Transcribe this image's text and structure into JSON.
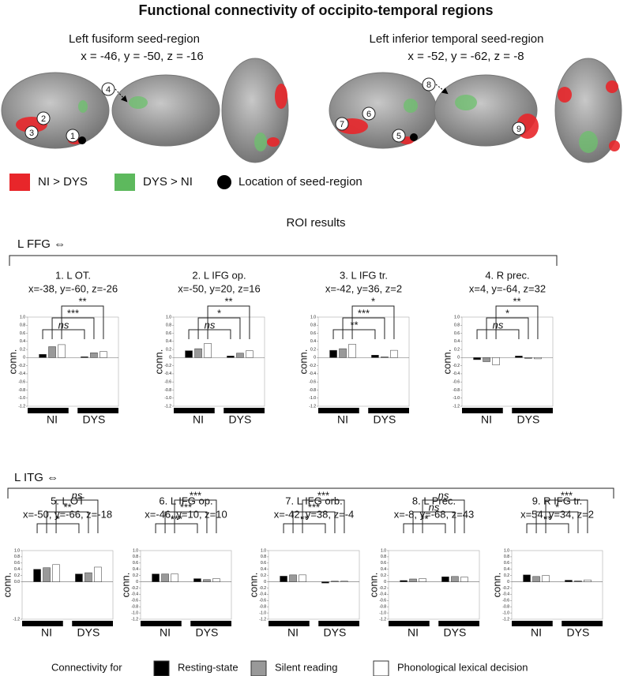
{
  "title": "Functional connectivity of occipito-temporal regions",
  "seeds": [
    {
      "name": "Left fusiform seed-region",
      "coords": "x = -46, y = -50, z = -16"
    },
    {
      "name": "Left inferior temporal seed-region",
      "coords": "x = -52, y = -62, z = -8"
    }
  ],
  "markers": [
    "1",
    "2",
    "3",
    "4",
    "5",
    "6",
    "7",
    "8",
    "9"
  ],
  "map_legend": [
    "NI > DYS",
    "DYS > NI",
    "Location of seed-region"
  ],
  "roi_title": "ROI results",
  "groups": [
    "L FFG ⇔",
    "L ITG ⇔"
  ],
  "legend_title": "Connectivity for",
  "chart_data": [
    {
      "type": "bar",
      "title": "1. L OT.",
      "subtitle": "x=-38, y=-60, z=-26",
      "ylabel": "conn.",
      "categories": [
        "NI",
        "DYS"
      ],
      "series": [
        {
          "name": "Resting-state",
          "color": "#000000",
          "values": [
            0.08,
            0.02
          ]
        },
        {
          "name": "Silent reading",
          "color": "#999999",
          "values": [
            0.27,
            0.12
          ]
        },
        {
          "name": "Phonological lexical decision",
          "color": "#ffffff",
          "values": [
            0.32,
            0.15
          ]
        }
      ],
      "significance": [
        "ns",
        "***",
        "**"
      ],
      "ylim": [
        -1.2,
        1.0
      ],
      "yticks": [
        {
          "value": 1,
          "label": "1.0"
        },
        0.8,
        0.6,
        0.4,
        0.2,
        0,
        -0.2,
        -0.4,
        -0.6,
        -0.8,
        {
          "value": -1,
          "label": "-1.0"
        },
        -1.2
      ]
    },
    {
      "type": "bar",
      "title": "2. L IFG op.",
      "subtitle": "x=-50, y=20, z=16",
      "ylabel": "conn.",
      "categories": [
        "NI",
        "DYS"
      ],
      "series": [
        {
          "name": "Resting-state",
          "color": "#000000",
          "values": [
            0.17,
            0.04
          ]
        },
        {
          "name": "Silent reading",
          "color": "#999999",
          "values": [
            0.22,
            0.11
          ]
        },
        {
          "name": "Phonological lexical decision",
          "color": "#ffffff",
          "values": [
            0.35,
            0.17
          ]
        }
      ],
      "significance": [
        "ns",
        "*",
        "**"
      ],
      "ylim": [
        -1.2,
        1.0
      ],
      "yticks": [
        {
          "value": 1,
          "label": "1.0"
        },
        0.8,
        0.6,
        0.4,
        0.2,
        0,
        -0.2,
        -0.4,
        -0.6,
        -0.8,
        {
          "value": -1,
          "label": "-1.0"
        },
        -1.2
      ]
    },
    {
      "type": "bar",
      "title": "3. L IFG tr.",
      "subtitle": "x=-42, y=36, z=2",
      "ylabel": "conn.",
      "categories": [
        "NI",
        "DYS"
      ],
      "series": [
        {
          "name": "Resting-state",
          "color": "#000000",
          "values": [
            0.18,
            0.06
          ]
        },
        {
          "name": "Silent reading",
          "color": "#999999",
          "values": [
            0.22,
            0.02
          ]
        },
        {
          "name": "Phonological lexical decision",
          "color": "#ffffff",
          "values": [
            0.33,
            0.18
          ]
        }
      ],
      "significance": [
        "**",
        "***",
        "*"
      ],
      "ylim": [
        -1.2,
        1.0
      ],
      "yticks": [
        {
          "value": 1,
          "label": "1.0"
        },
        0.8,
        0.6,
        0.4,
        0.2,
        0,
        -0.2,
        -0.4,
        -0.6,
        -0.8,
        {
          "value": -1,
          "label": "-1.0"
        },
        -1.2
      ]
    },
    {
      "type": "bar",
      "title": "4. R prec.",
      "subtitle": "x=4, y=-64, z=32",
      "ylabel": "conn.",
      "categories": [
        "NI",
        "DYS"
      ],
      "series": [
        {
          "name": "Resting-state",
          "color": "#000000",
          "values": [
            -0.05,
            0.04
          ]
        },
        {
          "name": "Silent reading",
          "color": "#999999",
          "values": [
            -0.1,
            -0.02
          ]
        },
        {
          "name": "Phonological lexical decision",
          "color": "#ffffff",
          "values": [
            -0.18,
            -0.03
          ]
        }
      ],
      "significance": [
        "ns",
        "*",
        "**"
      ],
      "ylim": [
        -1.2,
        1.0
      ],
      "yticks": [
        {
          "value": 1,
          "label": "1.0"
        },
        0.8,
        0.6,
        0.4,
        0.2,
        0,
        -0.2,
        -0.4,
        -0.6,
        -0.8,
        {
          "value": -1,
          "label": "-1.0"
        },
        -1.2
      ]
    },
    {
      "type": "bar",
      "title": "5. L OT",
      "subtitle": "x=-50, y=-66, z=-18",
      "ylabel": "conn.",
      "categories": [
        "NI",
        "DYS"
      ],
      "series": [
        {
          "name": "Resting-state",
          "color": "#000000",
          "values": [
            0.4,
            0.25
          ]
        },
        {
          "name": "Silent reading",
          "color": "#999999",
          "values": [
            0.45,
            0.29
          ]
        },
        {
          "name": "Phonological lexical decision",
          "color": "#ffffff",
          "values": [
            0.55,
            0.47
          ]
        }
      ],
      "significance": [
        "*",
        "**",
        "ns"
      ],
      "ylim": [
        -1.2,
        1.0
      ],
      "yticks": [
        {
          "value": 1,
          "label": "1.0"
        },
        0.8,
        0.6,
        0.4,
        0.2,
        {
          "value": 0,
          "label": "0.0"
        },
        {
          "value": -1.2,
          "label": "-1.2"
        }
      ]
    },
    {
      "type": "bar",
      "title": "6. L IFG op.",
      "subtitle": "x=-46, y=10, z=10",
      "ylabel": "conn.",
      "categories": [
        "NI",
        "DYS"
      ],
      "series": [
        {
          "name": "Resting-state",
          "color": "#000000",
          "values": [
            0.25,
            0.1
          ]
        },
        {
          "name": "Silent reading",
          "color": "#999999",
          "values": [
            0.25,
            0.07
          ]
        },
        {
          "name": "Phonological lexical decision",
          "color": "#ffffff",
          "values": [
            0.25,
            0.1
          ]
        }
      ],
      "significance": [
        "***",
        "***",
        "***"
      ],
      "ylim": [
        -1.2,
        1.0
      ],
      "yticks": [
        {
          "value": 1,
          "label": "1.0"
        },
        0.8,
        0.6,
        0.4,
        0.2,
        0,
        -0.2,
        -0.4,
        -0.6,
        -0.8,
        {
          "value": -1,
          "label": "-1.0"
        },
        -1.2
      ]
    },
    {
      "type": "bar",
      "title": "7. L IFG orb.",
      "subtitle": "x=-42, y=38, z=-4",
      "ylabel": "conn.",
      "categories": [
        "NI",
        "DYS"
      ],
      "series": [
        {
          "name": "Resting-state",
          "color": "#000000",
          "values": [
            0.18,
            -0.04
          ]
        },
        {
          "name": "Silent reading",
          "color": "#999999",
          "values": [
            0.22,
            0.02
          ]
        },
        {
          "name": "Phonological lexical decision",
          "color": "#ffffff",
          "values": [
            0.22,
            0.02
          ]
        }
      ],
      "significance": [
        "**",
        "***",
        "***"
      ],
      "ylim": [
        -1.2,
        1.0
      ],
      "yticks": [
        {
          "value": 1,
          "label": "1.0"
        },
        0.8,
        0.6,
        0.4,
        0.2,
        0,
        -0.2,
        -0.4,
        -0.6,
        -0.8,
        {
          "value": -1,
          "label": "-1.0"
        },
        -1.2
      ]
    },
    {
      "type": "bar",
      "title": "8. L Prec.",
      "subtitle": "x=-8, y=-68, z=43",
      "ylabel": "conn.",
      "categories": [
        "NI",
        "DYS"
      ],
      "series": [
        {
          "name": "Resting-state",
          "color": "#000000",
          "values": [
            0.04,
            0.16
          ]
        },
        {
          "name": "Silent reading",
          "color": "#999999",
          "values": [
            0.09,
            0.17
          ]
        },
        {
          "name": "Phonological lexical decision",
          "color": "#ffffff",
          "values": [
            0.1,
            0.15
          ]
        }
      ],
      "significance": [
        "**",
        "ns",
        "ns"
      ],
      "ylim": [
        -1.2,
        1.0
      ],
      "yticks": [
        {
          "value": 1,
          "label": "1.0"
        },
        0.8,
        0.6,
        0.4,
        0.2,
        0,
        -0.2,
        -0.4,
        -0.6,
        -0.8,
        {
          "value": -1,
          "label": "-1.0"
        },
        -1.2
      ]
    },
    {
      "type": "bar",
      "title": "9. R IFG tr.",
      "subtitle": "x=54, y=34, z=2",
      "ylabel": "conn.",
      "categories": [
        "NI",
        "DYS"
      ],
      "series": [
        {
          "name": "Resting-state",
          "color": "#000000",
          "values": [
            0.22,
            0.05
          ]
        },
        {
          "name": "Silent reading",
          "color": "#999999",
          "values": [
            0.17,
            0.03
          ]
        },
        {
          "name": "Phonological lexical decision",
          "color": "#ffffff",
          "values": [
            0.2,
            0.06
          ]
        }
      ],
      "significance": [
        "**",
        "*",
        "***"
      ],
      "ylim": [
        -1.2,
        1.0
      ],
      "yticks": [
        {
          "value": 1,
          "label": "1.0"
        },
        0.8,
        0.6,
        0.4,
        0.2,
        0,
        -0.2,
        -0.4,
        -0.6,
        -0.8,
        {
          "value": -1,
          "label": "-1.0"
        },
        -1.2
      ]
    }
  ]
}
